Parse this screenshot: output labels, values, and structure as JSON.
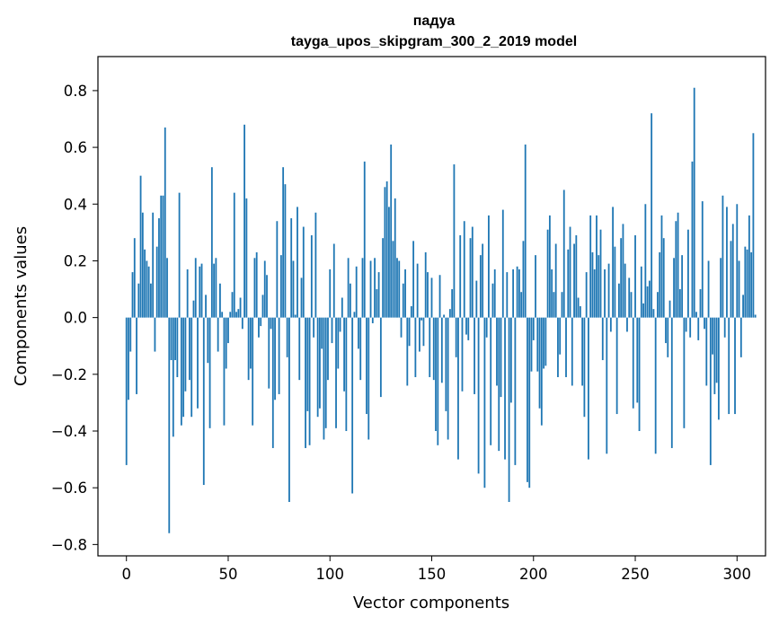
{
  "chart_data": {
    "type": "bar",
    "title": "падуа",
    "subtitle": "tayga_upos_skipgram_300_2_2019 model",
    "xlabel": "Vector components",
    "ylabel": "Components values",
    "xlim": [
      -14,
      314
    ],
    "ylim": [
      -0.84,
      0.92
    ],
    "xticks": [
      0,
      50,
      100,
      150,
      200,
      250,
      300
    ],
    "yticks": [
      -0.8,
      -0.6,
      -0.4,
      -0.2,
      0.0,
      0.2,
      0.4,
      0.6,
      0.8
    ],
    "ytick_labels": [
      "−0.8",
      "−0.6",
      "−0.4",
      "−0.2",
      "0.0",
      "0.2",
      "0.4",
      "0.6",
      "0.8"
    ],
    "grid": false,
    "bar_color": "#1f77b4",
    "values": [
      -0.52,
      -0.29,
      -0.12,
      0.16,
      0.28,
      -0.27,
      0.12,
      0.5,
      0.37,
      0.24,
      0.2,
      0.18,
      0.12,
      0.37,
      -0.12,
      0.25,
      0.35,
      0.43,
      0.43,
      0.67,
      0.21,
      -0.76,
      -0.15,
      -0.42,
      -0.15,
      -0.21,
      0.44,
      -0.38,
      -0.35,
      -0.26,
      0.17,
      -0.22,
      -0.35,
      0.06,
      0.21,
      -0.32,
      0.18,
      0.19,
      -0.59,
      0.08,
      -0.16,
      -0.39,
      0.53,
      0.19,
      0.21,
      -0.12,
      0.12,
      0.02,
      -0.38,
      -0.18,
      -0.09,
      0.02,
      0.09,
      0.44,
      0.02,
      0.03,
      0.07,
      -0.04,
      0.68,
      0.42,
      -0.22,
      -0.18,
      -0.38,
      0.21,
      0.23,
      -0.07,
      -0.03,
      0.08,
      0.2,
      0.15,
      -0.25,
      -0.04,
      -0.46,
      -0.29,
      0.34,
      -0.27,
      0.22,
      0.53,
      0.47,
      -0.14,
      -0.65,
      0.35,
      0.2,
      0.01,
      0.39,
      -0.22,
      0.14,
      0.32,
      -0.46,
      -0.33,
      -0.45,
      0.29,
      -0.07,
      0.37,
      -0.35,
      -0.32,
      -0.11,
      -0.43,
      -0.39,
      -0.22,
      0.17,
      -0.09,
      0.26,
      -0.39,
      -0.18,
      -0.05,
      0.07,
      -0.26,
      -0.4,
      0.21,
      0.12,
      -0.62,
      0.02,
      0.18,
      -0.11,
      -0.22,
      0.21,
      0.55,
      -0.34,
      -0.43,
      0.2,
      -0.02,
      0.21,
      0.1,
      0.16,
      -0.28,
      0.28,
      0.46,
      0.48,
      0.39,
      0.61,
      0.27,
      0.42,
      0.21,
      0.2,
      -0.07,
      0.12,
      0.17,
      -0.24,
      -0.1,
      0.04,
      0.27,
      -0.21,
      0.19,
      -0.12,
      -0.01,
      -0.1,
      0.23,
      0.16,
      -0.21,
      0.14,
      -0.22,
      -0.4,
      -0.45,
      0.15,
      -0.23,
      0.01,
      -0.33,
      -0.43,
      0.03,
      0.1,
      0.54,
      -0.14,
      -0.5,
      0.29,
      -0.26,
      0.34,
      -0.06,
      -0.08,
      0.28,
      0.32,
      -0.27,
      0.13,
      -0.55,
      0.22,
      0.26,
      -0.6,
      -0.07,
      0.36,
      -0.45,
      0.12,
      0.17,
      -0.24,
      -0.47,
      -0.28,
      0.38,
      -0.5,
      0.16,
      -0.65,
      -0.3,
      0.17,
      -0.52,
      0.18,
      0.17,
      0.09,
      0.27,
      0.61,
      -0.58,
      -0.6,
      -0.19,
      -0.08,
      0.22,
      -0.19,
      -0.32,
      -0.38,
      -0.18,
      -0.17,
      0.31,
      0.36,
      0.17,
      0.09,
      0.26,
      -0.21,
      -0.13,
      0.09,
      0.45,
      -0.21,
      0.24,
      0.32,
      -0.24,
      0.26,
      0.29,
      0.07,
      0.04,
      -0.24,
      -0.35,
      0.16,
      -0.5,
      0.36,
      0.23,
      0.17,
      0.36,
      0.22,
      0.31,
      -0.15,
      0.17,
      -0.48,
      0.19,
      -0.05,
      0.39,
      0.25,
      -0.34,
      0.12,
      0.28,
      0.33,
      0.19,
      -0.05,
      0.14,
      0.09,
      -0.32,
      0.29,
      -0.3,
      -0.4,
      0.18,
      0.05,
      0.4,
      0.11,
      0.13,
      0.72,
      0.03,
      -0.48,
      0.09,
      0.23,
      0.36,
      0.28,
      -0.09,
      -0.14,
      0.06,
      -0.46,
      0.21,
      0.34,
      0.37,
      0.1,
      0.22,
      -0.39,
      -0.05,
      0.31,
      -0.07,
      0.55,
      0.81,
      0.02,
      -0.08,
      0.1,
      0.41,
      -0.04,
      -0.24,
      0.2,
      -0.52,
      -0.13,
      -0.27,
      -0.23,
      -0.36,
      0.21,
      0.43,
      -0.07,
      0.39,
      -0.34,
      0.27,
      0.33,
      -0.34,
      0.4,
      0.2,
      -0.14,
      0.08,
      0.25,
      0.24,
      0.36,
      0.23,
      0.65,
      0.01
    ]
  }
}
